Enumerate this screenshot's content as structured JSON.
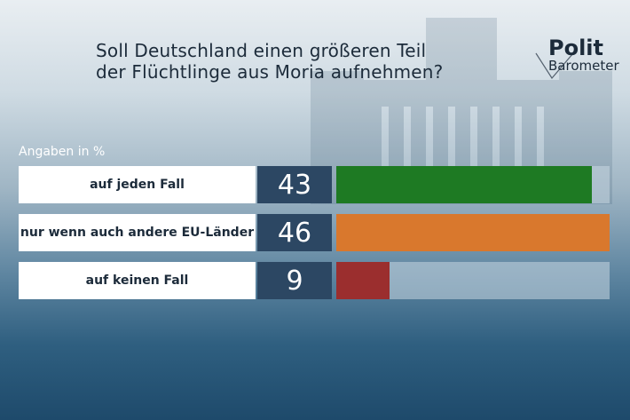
{
  "title_lines": [
    "Soll Deutschland einen größeren Teil",
    "der Flüchtlinge aus Moria aufnehmen?"
  ],
  "logo": {
    "line1": "Polit",
    "line2": "Barometer"
  },
  "colors": {
    "green": "#1e7a23",
    "orange": "#d9782d",
    "red": "#9b2e2e"
  },
  "chart_data": {
    "type": "bar",
    "orientation": "horizontal",
    "title": "Soll Deutschland einen größeren Teil der Flüchtlinge aus Moria aufnehmen?",
    "unit_label": "Angaben in %",
    "categories": [
      "auf jeden Fall",
      "nur wenn auch andere EU-Länder",
      "auf keinen Fall"
    ],
    "values": [
      43,
      46,
      9
    ],
    "xlim": [
      0,
      46
    ],
    "colors": [
      "#1e7a23",
      "#d9782d",
      "#9b2e2e"
    ]
  }
}
